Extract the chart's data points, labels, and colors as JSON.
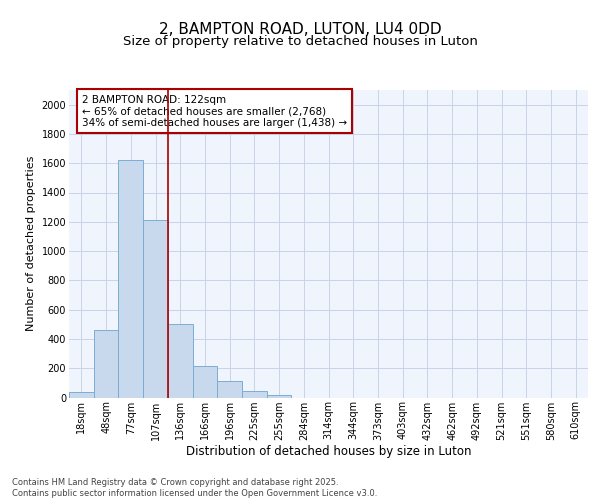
{
  "title": "2, BAMPTON ROAD, LUTON, LU4 0DD",
  "subtitle": "Size of property relative to detached houses in Luton",
  "xlabel": "Distribution of detached houses by size in Luton",
  "ylabel": "Number of detached properties",
  "categories": [
    "18sqm",
    "48sqm",
    "77sqm",
    "107sqm",
    "136sqm",
    "166sqm",
    "196sqm",
    "225sqm",
    "255sqm",
    "284sqm",
    "314sqm",
    "344sqm",
    "373sqm",
    "403sqm",
    "432sqm",
    "462sqm",
    "492sqm",
    "521sqm",
    "551sqm",
    "580sqm",
    "610sqm"
  ],
  "values": [
    35,
    460,
    1620,
    1210,
    505,
    215,
    110,
    45,
    20,
    0,
    0,
    0,
    0,
    0,
    0,
    0,
    0,
    0,
    0,
    0,
    0
  ],
  "bar_color": "#c8d9ee",
  "bar_edge_color": "#7aadd4",
  "vline_color": "#aa0000",
  "vline_pos": 3.5,
  "annotation_line1": "2 BAMPTON ROAD: 122sqm",
  "annotation_line2": "← 65% of detached houses are smaller (2,768)",
  "annotation_line3": "34% of semi-detached houses are larger (1,438) →",
  "annotation_box_color": "#aa0000",
  "ylim": [
    0,
    2100
  ],
  "yticks": [
    0,
    200,
    400,
    600,
    800,
    1000,
    1200,
    1400,
    1600,
    1800,
    2000
  ],
  "footer": "Contains HM Land Registry data © Crown copyright and database right 2025.\nContains public sector information licensed under the Open Government Licence v3.0.",
  "bg_color": "#ffffff",
  "plot_bg_color": "#f0f4fc",
  "grid_color": "#c8d4e8",
  "title_fontsize": 11,
  "subtitle_fontsize": 9.5,
  "xlabel_fontsize": 8.5,
  "ylabel_fontsize": 8,
  "tick_fontsize": 7,
  "annotation_fontsize": 7.5,
  "footer_fontsize": 6
}
